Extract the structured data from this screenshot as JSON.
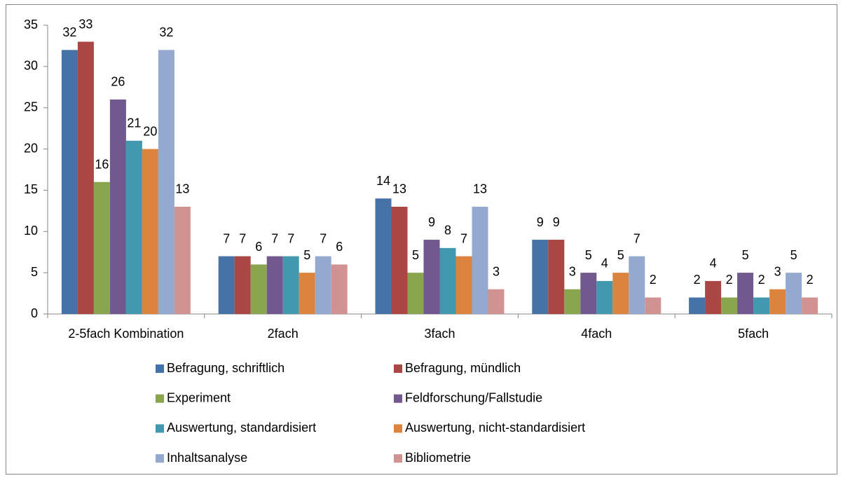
{
  "chart_data": {
    "type": "bar",
    "categories": [
      "2-5fach Kombination",
      "2fach",
      "3fach",
      "4fach",
      "5fach"
    ],
    "series": [
      {
        "name": "Befragung, schriftlich",
        "color": "#4572a7",
        "values": [
          32,
          7,
          14,
          9,
          2
        ]
      },
      {
        "name": "Befragung, mündlich",
        "color": "#aa4643",
        "values": [
          33,
          7,
          13,
          9,
          4
        ]
      },
      {
        "name": "Experiment",
        "color": "#89a54e",
        "values": [
          16,
          6,
          5,
          3,
          2
        ]
      },
      {
        "name": "Feldforschung/Fallstudie",
        "color": "#71588f",
        "values": [
          26,
          7,
          9,
          5,
          5
        ]
      },
      {
        "name": "Auswertung, standardisiert",
        "color": "#4198af",
        "values": [
          21,
          7,
          8,
          4,
          2
        ]
      },
      {
        "name": "Auswertung, nicht-standardisiert",
        "color": "#db843d",
        "values": [
          20,
          5,
          7,
          5,
          3
        ]
      },
      {
        "name": "Inhaltsanalyse",
        "color": "#93a9cf",
        "values": [
          32,
          7,
          13,
          7,
          5
        ]
      },
      {
        "name": "Bibliometrie",
        "color": "#d19392",
        "values": [
          13,
          6,
          3,
          2,
          2
        ]
      }
    ],
    "ylim": [
      0,
      35
    ],
    "yticks": [
      0,
      5,
      10,
      15,
      20,
      25,
      30,
      35
    ],
    "grid": false,
    "legend": "bottom"
  }
}
